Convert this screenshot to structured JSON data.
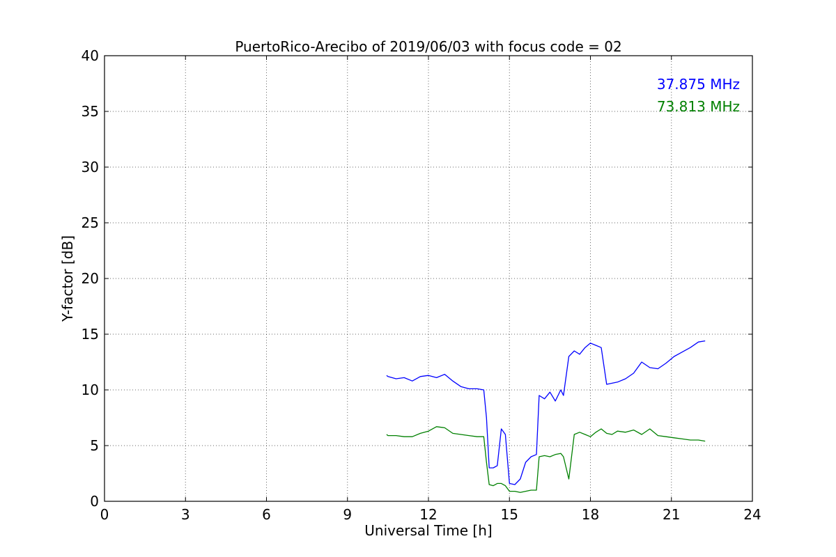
{
  "chart_data": {
    "type": "line",
    "title": "PuertoRico-Arecibo of 2019/06/03 with focus code = 02",
    "xlabel": "Universal Time [h]",
    "ylabel": "Y-factor [dB]",
    "xlim": [
      0,
      24
    ],
    "ylim": [
      0,
      40
    ],
    "xticks": [
      0,
      3,
      6,
      9,
      12,
      15,
      18,
      21,
      24
    ],
    "yticks": [
      0,
      5,
      10,
      15,
      20,
      25,
      30,
      35,
      40
    ],
    "grid": true,
    "legend_position": "top-right",
    "series": [
      {
        "name": "37.875 MHz",
        "color": "#0000ff",
        "x": [
          10.45,
          10.5,
          10.8,
          11.1,
          11.4,
          11.7,
          12.0,
          12.3,
          12.6,
          12.9,
          13.2,
          13.5,
          13.8,
          14.05,
          14.15,
          14.25,
          14.4,
          14.55,
          14.7,
          14.85,
          15.0,
          15.2,
          15.4,
          15.6,
          15.8,
          16.0,
          16.1,
          16.3,
          16.5,
          16.7,
          16.9,
          17.0,
          17.2,
          17.4,
          17.6,
          17.8,
          18.0,
          18.2,
          18.4,
          18.6,
          18.8,
          19.0,
          19.3,
          19.6,
          19.9,
          20.2,
          20.5,
          20.8,
          21.1,
          21.4,
          21.7,
          22.0,
          22.25
        ],
        "y": [
          11.3,
          11.2,
          11.0,
          11.1,
          10.8,
          11.2,
          11.3,
          11.1,
          11.4,
          10.8,
          10.3,
          10.1,
          10.1,
          10.0,
          7.5,
          3.0,
          3.0,
          3.2,
          6.5,
          6.0,
          1.6,
          1.5,
          2.0,
          3.5,
          4.0,
          4.2,
          9.5,
          9.2,
          9.8,
          9.0,
          10.0,
          9.5,
          13.0,
          13.5,
          13.2,
          13.8,
          14.2,
          14.0,
          13.8,
          10.5,
          10.6,
          10.7,
          11.0,
          11.5,
          12.5,
          12.0,
          11.9,
          12.4,
          13.0,
          13.4,
          13.8,
          14.3,
          14.4
        ]
      },
      {
        "name": "73.813 MHz",
        "color": "#008000",
        "x": [
          10.45,
          10.5,
          10.8,
          11.1,
          11.4,
          11.7,
          12.0,
          12.3,
          12.6,
          12.9,
          13.2,
          13.5,
          13.8,
          14.05,
          14.15,
          14.25,
          14.4,
          14.55,
          14.7,
          14.85,
          15.0,
          15.2,
          15.4,
          15.6,
          15.8,
          16.0,
          16.1,
          16.3,
          16.5,
          16.7,
          16.9,
          17.0,
          17.2,
          17.4,
          17.6,
          17.8,
          18.0,
          18.2,
          18.4,
          18.6,
          18.8,
          19.0,
          19.3,
          19.6,
          19.9,
          20.2,
          20.5,
          20.8,
          21.1,
          21.4,
          21.7,
          22.0,
          22.25
        ],
        "y": [
          6.0,
          5.9,
          5.9,
          5.8,
          5.8,
          6.1,
          6.3,
          6.7,
          6.6,
          6.1,
          6.0,
          5.9,
          5.8,
          5.8,
          3.5,
          1.5,
          1.4,
          1.6,
          1.6,
          1.4,
          0.9,
          0.9,
          0.8,
          0.9,
          1.0,
          1.0,
          4.0,
          4.1,
          4.0,
          4.2,
          4.3,
          4.0,
          2.0,
          6.0,
          6.2,
          6.0,
          5.8,
          6.2,
          6.5,
          6.1,
          6.0,
          6.3,
          6.2,
          6.4,
          6.0,
          6.5,
          5.9,
          5.8,
          5.7,
          5.6,
          5.5,
          5.5,
          5.4
        ]
      }
    ]
  }
}
